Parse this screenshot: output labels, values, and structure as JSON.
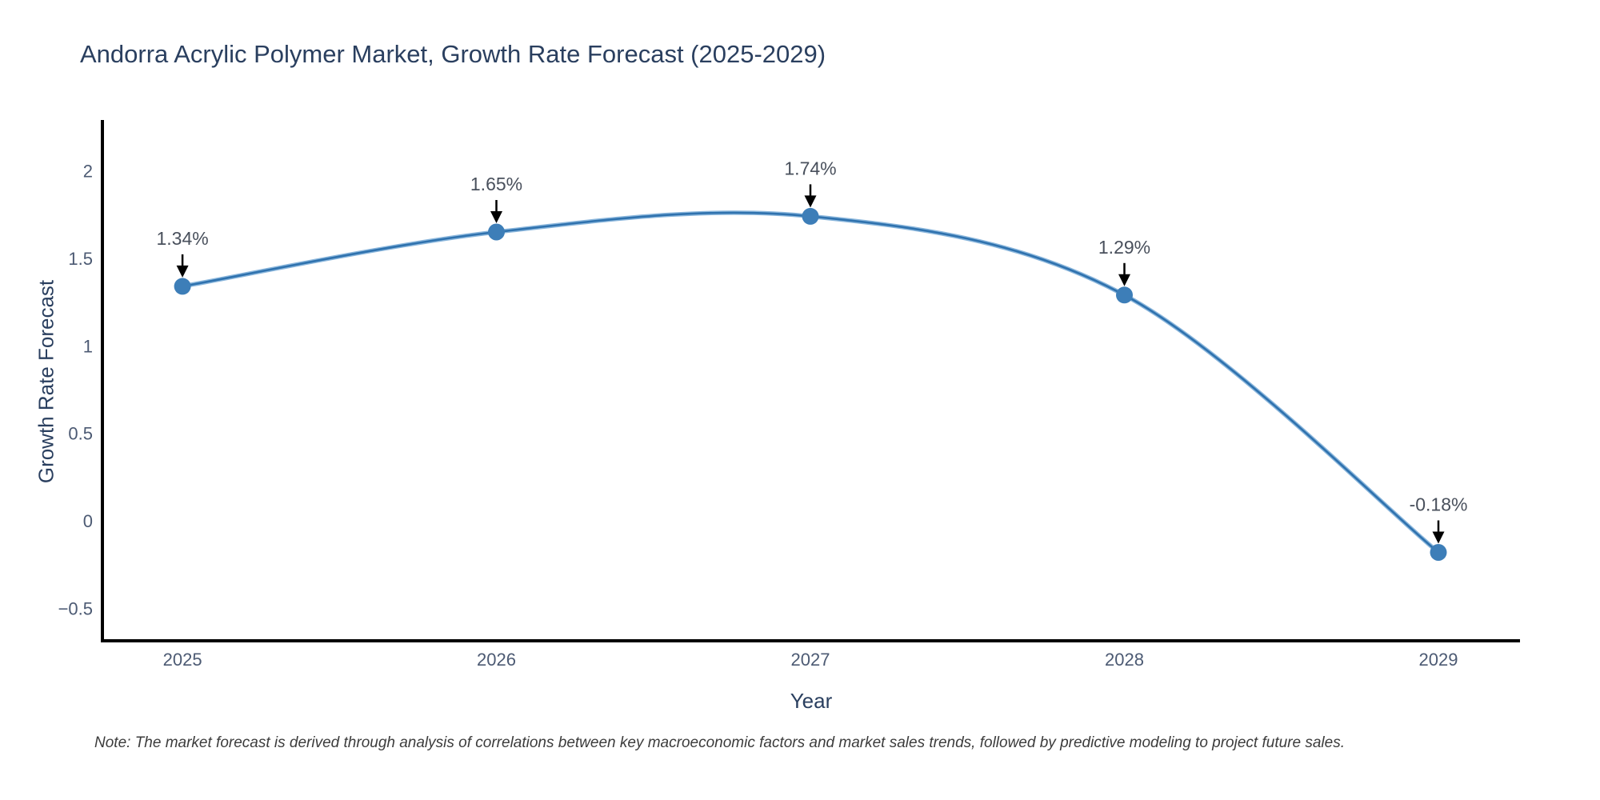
{
  "page": {
    "note": "Note: The market forecast is derived through analysis of correlations between key macroeconomic factors and market sales trends, followed by predictive modeling to project future sales."
  },
  "chart_data": {
    "type": "line",
    "title": "Andorra Acrylic Polymer Market, Growth Rate Forecast (2025-2029)",
    "xlabel": "Year",
    "ylabel": "Growth Rate Forecast",
    "x": [
      2025,
      2026,
      2027,
      2028,
      2029
    ],
    "series": [
      {
        "name": "Growth Rate Forecast",
        "values": [
          1.34,
          1.65,
          1.74,
          1.29,
          -0.18
        ]
      }
    ],
    "point_labels": [
      "1.34%",
      "1.65%",
      "1.74%",
      "1.29%",
      "-0.18%"
    ],
    "x_tick_labels": [
      "2025",
      "2026",
      "2027",
      "2028",
      "2029"
    ],
    "y_tick_values": [
      2,
      1.5,
      1,
      0.5,
      0,
      -0.5
    ],
    "y_tick_labels": [
      "2",
      "1.5",
      "1",
      "0.5",
      "0",
      "−0.5"
    ],
    "xlim": [
      2024.745,
      2029.26
    ],
    "ylim": [
      -0.685,
      2.29
    ],
    "line_shape": "spline",
    "grid": false,
    "legend": "none",
    "annotation_arrows": true,
    "colors": {
      "line_outer": "#8ab6dc",
      "line_core": "#2f72ae",
      "marker": "#3d7eb8",
      "axis": "#000000",
      "arrow": "#000000",
      "title_text": "#2a3f5f",
      "tick_text": "#4c5a73",
      "annotation_text": "#49505c"
    }
  }
}
